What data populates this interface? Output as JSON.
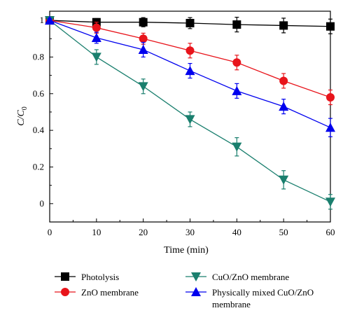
{
  "chart_data": {
    "type": "line",
    "title": "",
    "xlabel": "Time (min)",
    "ylabel": "C/C0",
    "ylabel_parts": {
      "main": "C/C",
      "sub": "0"
    },
    "xlim": [
      0,
      60
    ],
    "ylim": [
      -0.1,
      1.05
    ],
    "xticks": [
      0,
      10,
      20,
      30,
      40,
      50,
      60
    ],
    "yticks": [
      0,
      0.2,
      0.4,
      0.6,
      0.8,
      1
    ],
    "xtick_labels": [
      "0",
      "10",
      "20",
      "30",
      "40",
      "50",
      "60"
    ],
    "ytick_labels": [
      "0",
      "0.2",
      "0.4",
      "0.6",
      "0.8",
      "1"
    ],
    "grid": false,
    "legend_position": "below",
    "series": [
      {
        "name": "Photolysis",
        "marker": "square",
        "color": "#000000",
        "x": [
          0,
          10,
          20,
          30,
          40,
          50,
          60
        ],
        "y": [
          1.0,
          0.99,
          0.99,
          0.985,
          0.977,
          0.972,
          0.967
        ],
        "err": [
          0.02,
          0.02,
          0.025,
          0.03,
          0.04,
          0.04,
          0.04
        ]
      },
      {
        "name": "ZnO membrane",
        "marker": "circle",
        "color": "#e8141b",
        "x": [
          0,
          10,
          20,
          30,
          40,
          50,
          60
        ],
        "y": [
          1.0,
          0.96,
          0.9,
          0.835,
          0.77,
          0.67,
          0.58
        ],
        "err": [
          0.01,
          0.03,
          0.03,
          0.04,
          0.04,
          0.04,
          0.04
        ]
      },
      {
        "name": "CuO/ZnO membrane",
        "marker": "triangle-down",
        "color": "#1a7f6e",
        "x": [
          0,
          10,
          20,
          30,
          40,
          50,
          60
        ],
        "y": [
          1.0,
          0.8,
          0.64,
          0.46,
          0.31,
          0.13,
          0.01
        ],
        "err": [
          0.01,
          0.04,
          0.04,
          0.04,
          0.05,
          0.05,
          0.04
        ]
      },
      {
        "name": "Physically mixed CuO/ZnO membrane",
        "name_lines": [
          "Physically mixed CuO/ZnO",
          "membrane"
        ],
        "marker": "triangle-up",
        "color": "#0000ee",
        "x": [
          0,
          10,
          20,
          30,
          40,
          50,
          60
        ],
        "y": [
          1.0,
          0.905,
          0.84,
          0.725,
          0.615,
          0.53,
          0.415
        ],
        "err": [
          0.01,
          0.03,
          0.04,
          0.04,
          0.04,
          0.04,
          0.05
        ]
      }
    ]
  }
}
